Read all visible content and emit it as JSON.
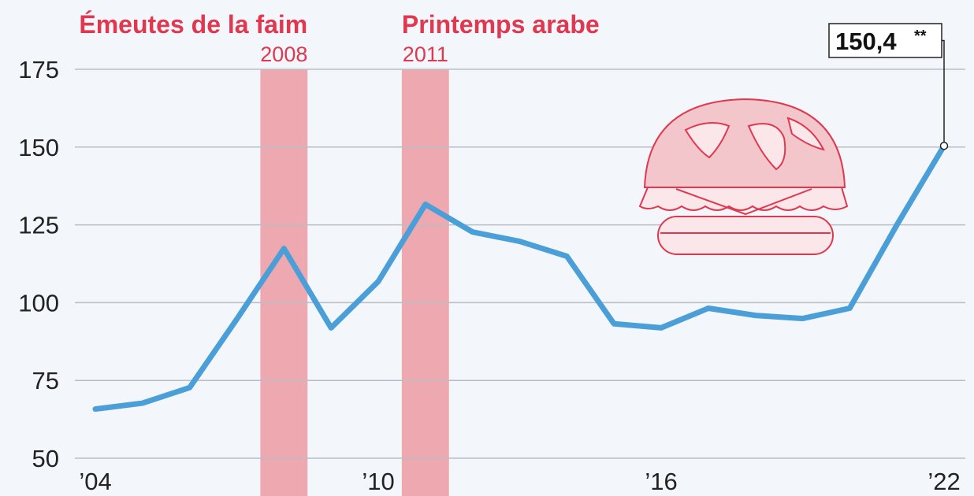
{
  "chart_data": {
    "type": "line",
    "x": [
      2004,
      2005,
      2006,
      2007,
      2008,
      2009,
      2010,
      2011,
      2012,
      2013,
      2014,
      2015,
      2016,
      2017,
      2018,
      2019,
      2020,
      2021,
      2022
    ],
    "series": [
      {
        "color": "#4a9fd8",
        "values": [
          65.8,
          67.7,
          72.7,
          94.7,
          117.4,
          91.9,
          106.8,
          131.6,
          122.7,
          119.7,
          114.9,
          93.2,
          91.9,
          98.2,
          95.9,
          94.9,
          98.2,
          125.0,
          150.4
        ],
        "value_labels": [
          null,
          null,
          null,
          null,
          null,
          null,
          null,
          null,
          null,
          null,
          null,
          null,
          null,
          null,
          null,
          null,
          null,
          null,
          "150,4"
        ],
        "value_label_note": "**"
      }
    ],
    "xlim": [
      2004,
      2022
    ],
    "xticks": [
      {
        "value": 2004,
        "label": "’04"
      },
      {
        "value": 2010,
        "label": "’10"
      },
      {
        "value": 2016,
        "label": "’16"
      },
      {
        "value": 2022,
        "label": "’22"
      }
    ],
    "ylim": [
      50,
      175
    ],
    "yticks": [
      50,
      75,
      100,
      125,
      150,
      175
    ],
    "grid": true,
    "highlights": [
      {
        "label": "Émeutes de la faim",
        "x": 2008,
        "color": "#eea8b0"
      },
      {
        "label": "Printemps arabe",
        "x": 2011,
        "color": "#eea8b0"
      }
    ]
  }
}
